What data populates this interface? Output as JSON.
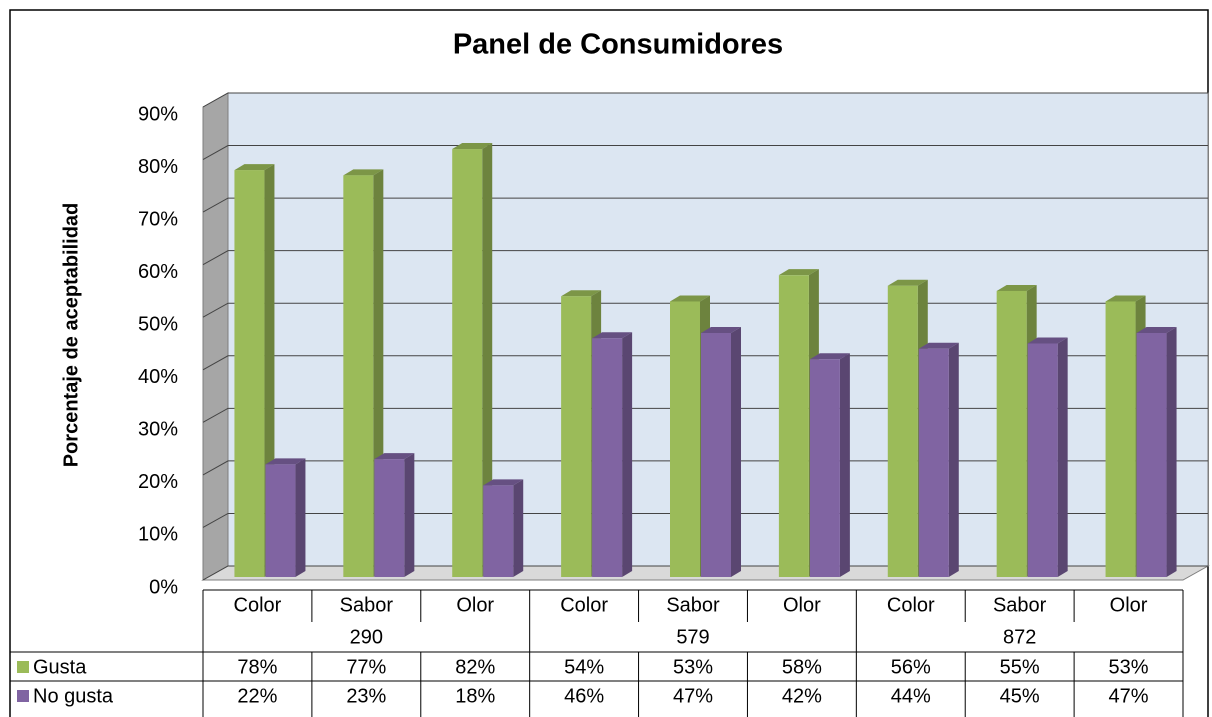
{
  "chart_data": {
    "type": "bar3d",
    "title": "Panel de Consumidores",
    "y_label": "Porcentaje de aceptabilidad",
    "categories": [
      "Color",
      "Sabor",
      "Olor",
      "Color",
      "Sabor",
      "Olor",
      "Color",
      "Sabor",
      "Olor"
    ],
    "groups": [
      "290",
      "579",
      "872"
    ],
    "series": [
      {
        "name": "Gusta",
        "color": "#9bbb59",
        "values": [
          78,
          77,
          82,
          54,
          53,
          58,
          56,
          55,
          53
        ],
        "value_labels": [
          "78%",
          "77%",
          "82%",
          "54%",
          "53%",
          "58%",
          "56%",
          "55%",
          "53%"
        ]
      },
      {
        "name": "No gusta",
        "color": "#8064a2",
        "values": [
          22,
          23,
          18,
          46,
          47,
          42,
          44,
          45,
          47
        ],
        "value_labels": [
          "22%",
          "23%",
          "18%",
          "46%",
          "47%",
          "42%",
          "44%",
          "45%",
          "47%"
        ]
      }
    ],
    "ylim": [
      0,
      90
    ],
    "yticks": [
      {
        "value": 0,
        "label": "0%"
      },
      {
        "value": 10,
        "label": "10%"
      },
      {
        "value": 20,
        "label": "20%"
      },
      {
        "value": 30,
        "label": "30%"
      },
      {
        "value": 40,
        "label": "40%"
      },
      {
        "value": 50,
        "label": "50%"
      },
      {
        "value": 60,
        "label": "60%"
      },
      {
        "value": 70,
        "label": "70%"
      },
      {
        "value": 80,
        "label": "80%"
      },
      {
        "value": 90,
        "label": "90%"
      }
    ],
    "grid": true
  }
}
